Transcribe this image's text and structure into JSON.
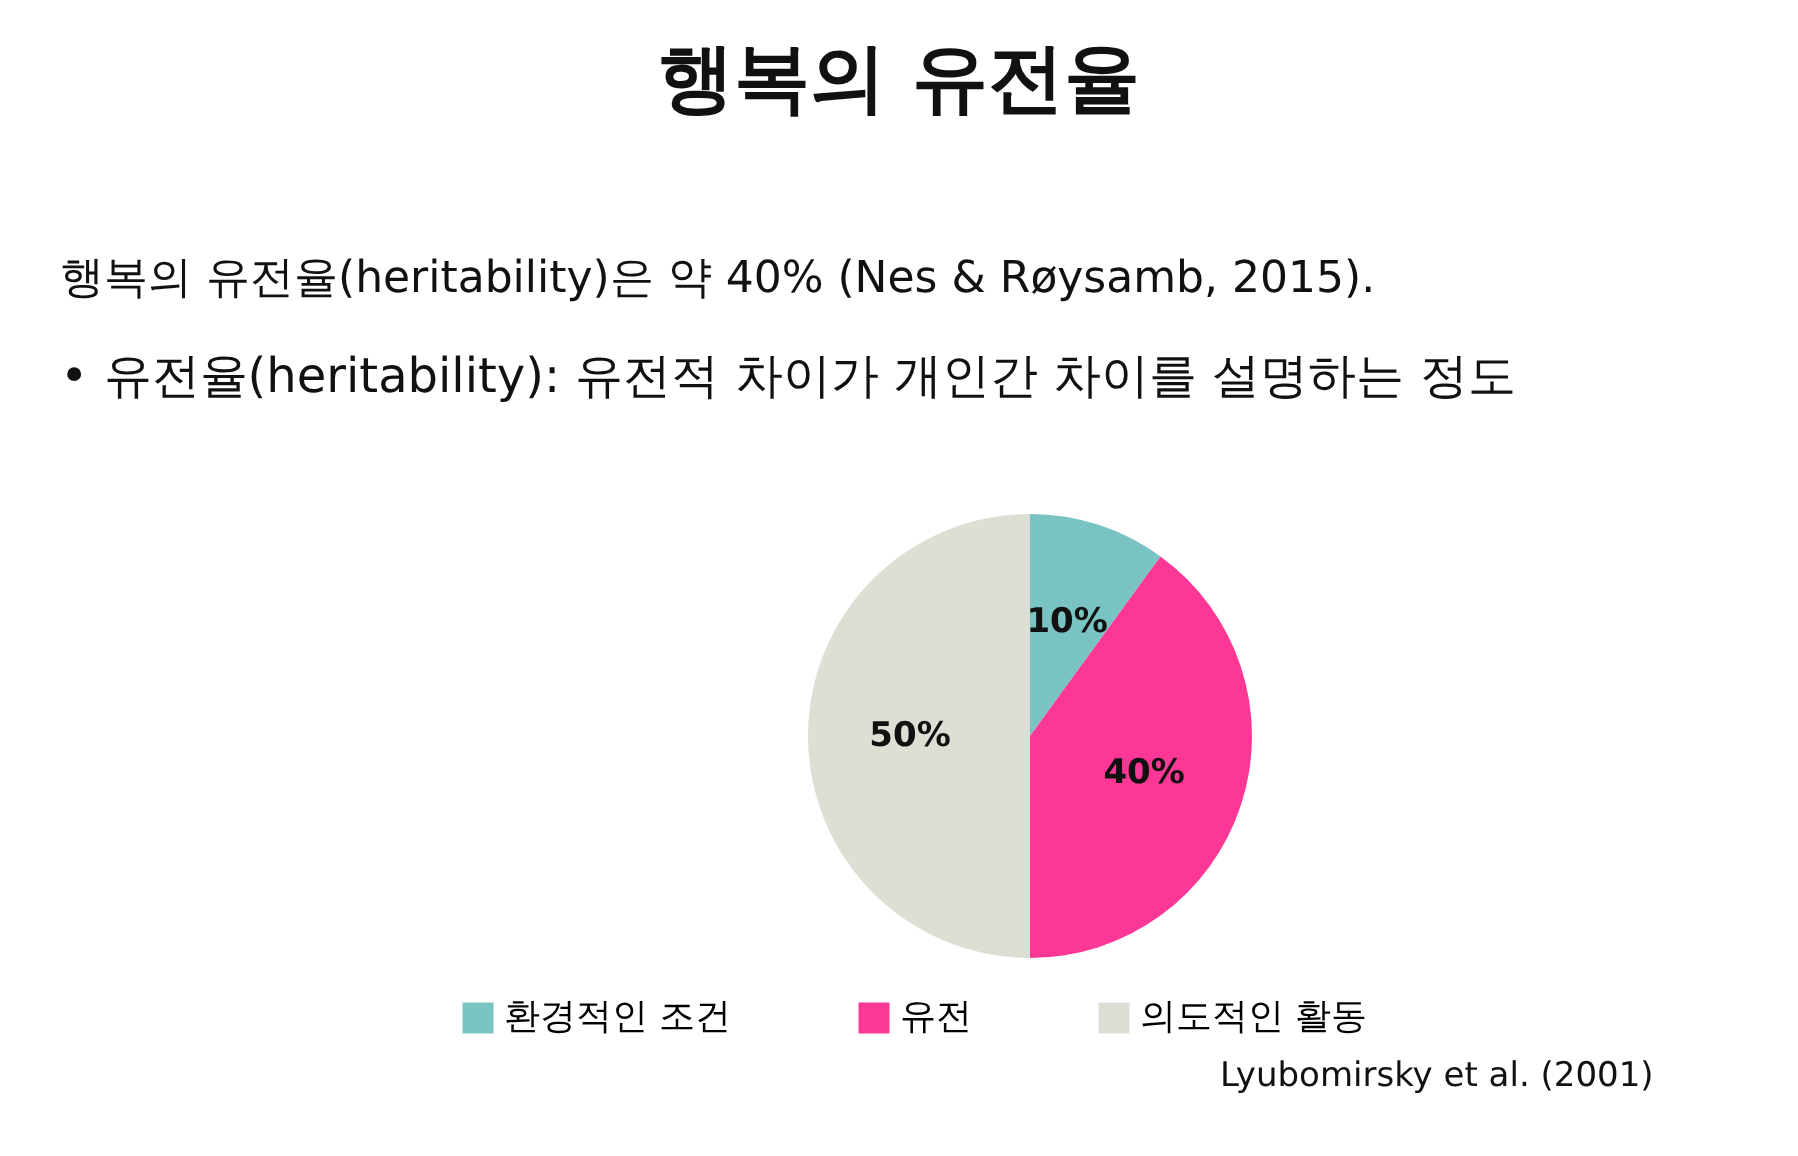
{
  "chart_data": {
    "type": "pie",
    "title": "행복의 유전율",
    "subtitle": "행복의 유전율(heritability)은 약 40% (Nes & Røysamb, 2015).",
    "annotations": [
      "• 유전율(heritability): 유전적 차이가 개인간 차이를 설명하는 정도",
      "Lyubomirsky et al. (2001)"
    ],
    "categories": [
      "환경적인 조건",
      "유전",
      "의도적인 활동"
    ],
    "values": [
      10,
      40,
      50
    ],
    "value_labels": [
      "10%",
      "40%",
      "50%"
    ],
    "colors": [
      "#79c4c2",
      "#fc3796",
      "#dcdfd3"
    ],
    "legend": "bottom"
  }
}
